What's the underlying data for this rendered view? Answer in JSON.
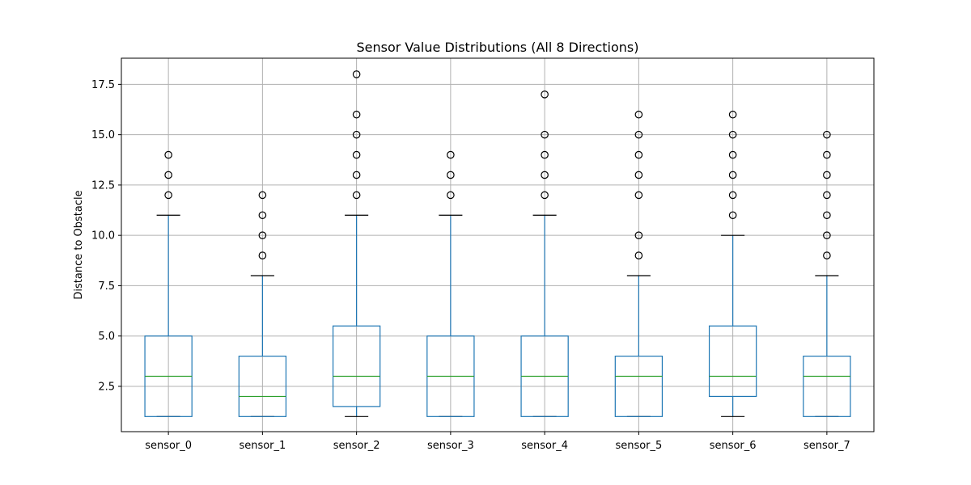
{
  "chart_data": {
    "type": "box",
    "title": "Sensor Value Distributions (All 8 Directions)",
    "xlabel": "",
    "ylabel": "Distance to Obstacle",
    "ylim": [
      0.25,
      18.8
    ],
    "yticks": [
      "2.5",
      "5.0",
      "7.5",
      "10.0",
      "12.5",
      "15.0",
      "17.5"
    ],
    "ytick_values": [
      2.5,
      5.0,
      7.5,
      10.0,
      12.5,
      15.0,
      17.5
    ],
    "grid": true,
    "colors": {
      "box": "#1f77b4",
      "median": "#2ca02c",
      "cap": "#000000",
      "grid": "#b0b0b0"
    },
    "categories": [
      "sensor_0",
      "sensor_1",
      "sensor_2",
      "sensor_3",
      "sensor_4",
      "sensor_5",
      "sensor_6",
      "sensor_7"
    ],
    "boxes": [
      {
        "name": "sensor_0",
        "whisker_low": 1,
        "q1": 1,
        "median": 3,
        "q3": 5,
        "whisker_high": 11,
        "outliers": [
          12,
          13,
          14
        ]
      },
      {
        "name": "sensor_1",
        "whisker_low": 1,
        "q1": 1,
        "median": 2,
        "q3": 4,
        "whisker_high": 8,
        "outliers": [
          9,
          10,
          11,
          12
        ]
      },
      {
        "name": "sensor_2",
        "whisker_low": 1,
        "q1": 1.5,
        "median": 3,
        "q3": 5.5,
        "whisker_high": 11,
        "outliers": [
          12,
          13,
          14,
          15,
          16,
          18
        ]
      },
      {
        "name": "sensor_3",
        "whisker_low": 1,
        "q1": 1,
        "median": 3,
        "q3": 5,
        "whisker_high": 11,
        "outliers": [
          12,
          13,
          14
        ]
      },
      {
        "name": "sensor_4",
        "whisker_low": 1,
        "q1": 1,
        "median": 3,
        "q3": 5,
        "whisker_high": 11,
        "outliers": [
          12,
          13,
          14,
          15,
          17
        ]
      },
      {
        "name": "sensor_5",
        "whisker_low": 1,
        "q1": 1,
        "median": 3,
        "q3": 4,
        "whisker_high": 8,
        "outliers": [
          9,
          10,
          12,
          13,
          14,
          15,
          16
        ]
      },
      {
        "name": "sensor_6",
        "whisker_low": 1,
        "q1": 2,
        "median": 3,
        "q3": 5.5,
        "whisker_high": 10,
        "outliers": [
          11,
          12,
          13,
          14,
          15,
          16
        ]
      },
      {
        "name": "sensor_7",
        "whisker_low": 1,
        "q1": 1,
        "median": 3,
        "q3": 4,
        "whisker_high": 8,
        "outliers": [
          9,
          10,
          11,
          12,
          13,
          14,
          15
        ]
      }
    ]
  }
}
